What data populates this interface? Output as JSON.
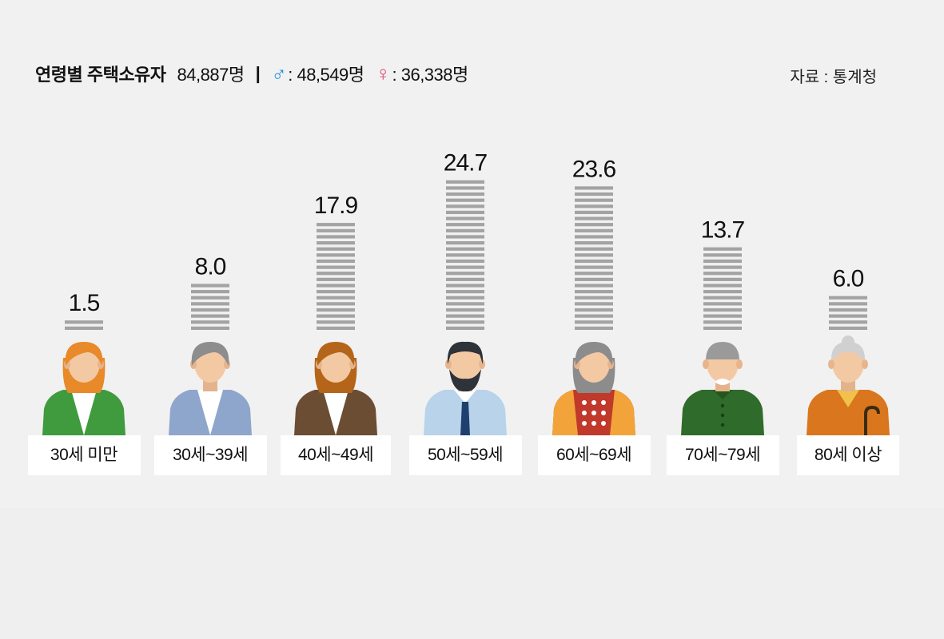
{
  "header": {
    "title": "연령별 주택소유자",
    "total": "84,887명",
    "separator": "|",
    "male_symbol": "♂",
    "male_count": ": 48,549명",
    "female_symbol": "♀",
    "female_count": ": 36,338명"
  },
  "source": "자료 : 통계청",
  "colors": {
    "bar": "#a3a3a3",
    "background": "#f1f1f1",
    "male": "#1e8fd6",
    "female": "#e5456f"
  },
  "chart_data": {
    "type": "bar",
    "categories": [
      "30세 미만",
      "30세~39세",
      "40세~49세",
      "50세~59세",
      "60세~69세",
      "70세~79세",
      "80세 이상"
    ],
    "values": [
      1.5,
      8.0,
      17.9,
      24.7,
      23.6,
      13.7,
      6.0
    ],
    "value_labels": [
      "1.5",
      "8.0",
      "17.9",
      "24.7",
      "23.6",
      "13.7",
      "6.0"
    ],
    "grid": false,
    "legend": "none"
  },
  "figures": [
    {
      "icon": "young-woman-icon",
      "hair": "#e8892a",
      "skin": "#f3c9a4",
      "shirt": "#3f9b3e",
      "inner": "#ffffff"
    },
    {
      "icon": "man-in-thirties-icon",
      "hair": "#8d8d8d",
      "skin": "#f3c9a4",
      "shirt": "#8ea6cc",
      "inner": "#ffffff"
    },
    {
      "icon": "woman-in-forties-icon",
      "hair": "#b4651a",
      "skin": "#f3c9a4",
      "shirt": "#6b4d33",
      "inner": "#ffffff"
    },
    {
      "icon": "bearded-man-icon",
      "hair": "#2d3338",
      "skin": "#f3c9a4",
      "shirt": "#b8d3ea",
      "inner": "#1f3f6e"
    },
    {
      "icon": "elderly-woman-icon",
      "hair": "#8c8c8c",
      "skin": "#f3c9a4",
      "shirt": "#c0392b",
      "inner": "#f2a33a"
    },
    {
      "icon": "elderly-man-icon",
      "hair": "#9a9a9a",
      "skin": "#f3c9a4",
      "shirt": "#2f6b2a",
      "inner": "#2f6b2a"
    },
    {
      "icon": "old-woman-with-cane-icon",
      "hair": "#d0d0d0",
      "skin": "#f3c9a4",
      "shirt": "#d9761e",
      "inner": "#f2c14a"
    }
  ]
}
